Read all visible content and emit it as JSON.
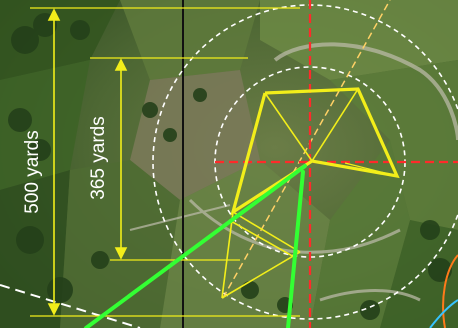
{
  "map": {
    "view": "aerial",
    "labels": {
      "outer_dimension": "500 yards",
      "inner_dimension": "365 yards"
    },
    "colors": {
      "dimension_lines": "#f2ee1a",
      "polygon_outline": "#f2ee1a",
      "axis_lines": "#ff2a2a",
      "circles": "#ffffff",
      "alignment_lines": "#33ff33",
      "diagonal_dashed": "#ffd166",
      "vertical_line": "#111111",
      "edge_arc_orange": "#ff7a1a",
      "edge_arc_cyan": "#36c3ff"
    }
  }
}
